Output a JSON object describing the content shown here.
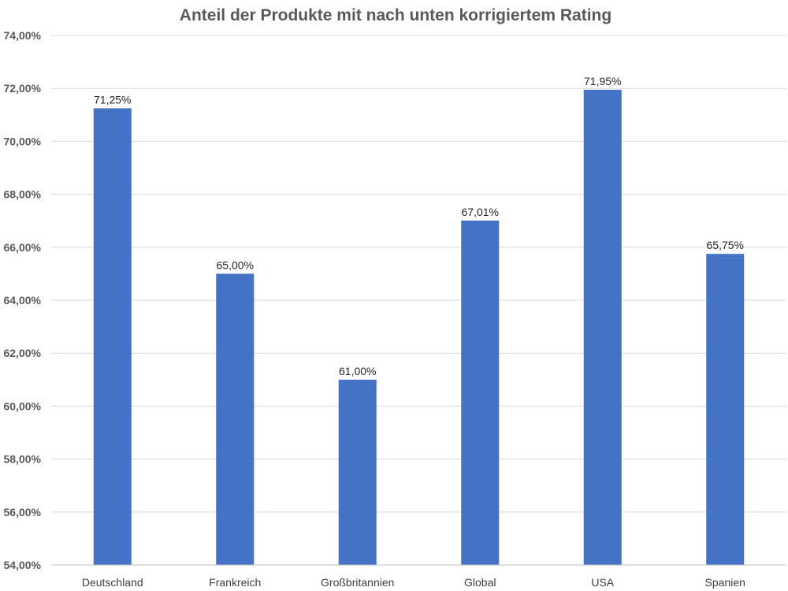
{
  "chart_data": {
    "type": "bar",
    "title": "Anteil der Produkte mit nach unten korrigiertem Rating",
    "xlabel": "",
    "ylabel": "",
    "categories": [
      "Deutschland",
      "Frankreich",
      "Großbritannien",
      "Global",
      "USA",
      "Spanien"
    ],
    "values": [
      71.25,
      65.0,
      61.0,
      67.01,
      71.95,
      65.75
    ],
    "value_labels": [
      "71,25%",
      "65,00%",
      "61,00%",
      "67,01%",
      "71,95%",
      "65,75%"
    ],
    "ylim": [
      54,
      74
    ],
    "yticks": [
      54,
      56,
      58,
      60,
      62,
      64,
      66,
      68,
      70,
      72,
      74
    ],
    "ytick_labels": [
      "54,00%",
      "56,00%",
      "58,00%",
      "60,00%",
      "62,00%",
      "64,00%",
      "66,00%",
      "68,00%",
      "70,00%",
      "72,00%",
      "74,00%"
    ],
    "grid": true,
    "legend": "none",
    "colors": {
      "bar": "#4472c4",
      "grid": "#d9d9d9",
      "axis": "#bfbfbf"
    }
  }
}
